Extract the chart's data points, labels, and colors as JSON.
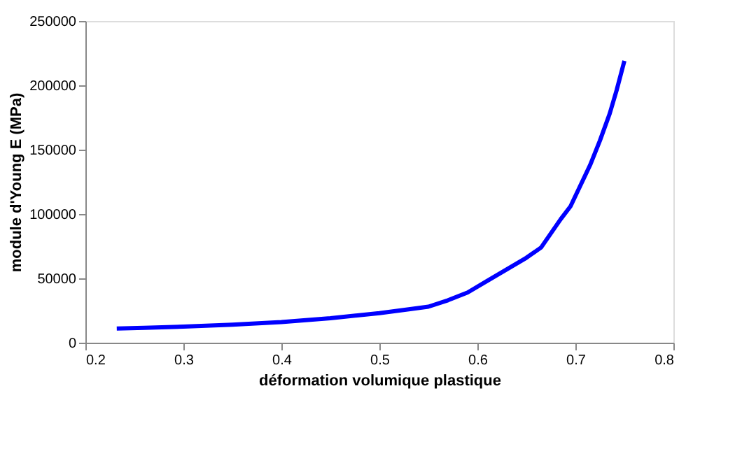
{
  "chart_data": {
    "type": "line",
    "xlabel": "déformation volumique plastique",
    "ylabel": "module d'Young E (MPa)",
    "x": [
      0.232,
      0.26,
      0.3,
      0.35,
      0.4,
      0.45,
      0.5,
      0.53,
      0.55,
      0.57,
      0.59,
      0.61,
      0.63,
      0.65,
      0.665,
      0.675,
      0.685,
      0.695,
      0.705,
      0.715,
      0.725,
      0.735,
      0.742,
      0.75
    ],
    "series": [
      {
        "color": "#0000ff",
        "values": [
          11000,
          11500,
          12500,
          14000,
          16000,
          19000,
          23000,
          26000,
          28000,
          33000,
          39000,
          48000,
          57000,
          66000,
          74000,
          85000,
          96000,
          106000,
          122000,
          138000,
          157000,
          178000,
          196000,
          219000
        ]
      }
    ],
    "xlim": [
      0.2,
      0.8
    ],
    "xticks": [
      0.2,
      0.3,
      0.4,
      0.5,
      0.6,
      0.7,
      0.8
    ],
    "ylim": [
      0,
      250000
    ],
    "yticks": [
      0,
      50000,
      100000,
      150000,
      200000,
      250000
    ],
    "grid": false,
    "legend": false,
    "marker": "none",
    "line_style": "solid"
  }
}
